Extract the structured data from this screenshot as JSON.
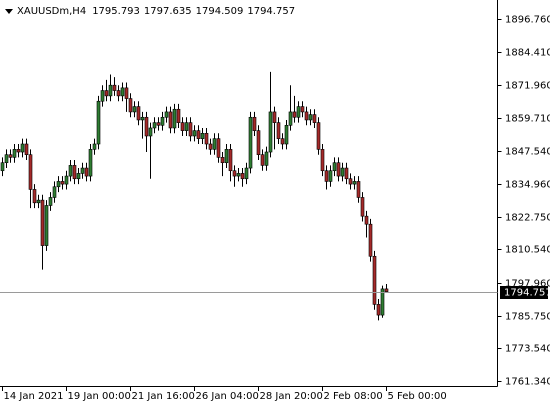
{
  "chart_data": {
    "type": "candlestick",
    "title": "XAUUSDm,H4",
    "categories": [
      "14 Jan 2021",
      null,
      null,
      null,
      null,
      null,
      null,
      null,
      null,
      null,
      null,
      null,
      null,
      null,
      null,
      null,
      "19 Jan 00:00",
      null,
      null,
      null,
      null,
      null,
      null,
      null,
      null,
      null,
      null,
      null,
      null,
      null,
      null,
      null,
      "21 Jan 16:00",
      null,
      null,
      null,
      null,
      null,
      null,
      null,
      null,
      null,
      null,
      null,
      null,
      null,
      null,
      null,
      "26 Jan 04:00",
      null,
      null,
      null,
      null,
      null,
      null,
      null,
      null,
      null,
      null,
      null,
      null,
      null,
      null,
      null,
      "28 Jan 20:00",
      null,
      null,
      null,
      null,
      null,
      null,
      null,
      null,
      null,
      null,
      null,
      null,
      null,
      null,
      null,
      "2 Feb 08:00",
      null,
      null,
      null,
      null,
      null,
      null,
      null,
      null,
      null,
      null,
      null,
      null,
      null,
      null,
      null,
      "5 Feb 00:00"
    ],
    "open": [
      1840,
      1843,
      1846,
      1845,
      1848,
      1847,
      1850,
      1846,
      1833,
      1828,
      1829,
      1812,
      1827,
      1830,
      1834,
      1836,
      1835,
      1838,
      1842,
      1837,
      1839,
      1841,
      1838,
      1848,
      1850,
      1866,
      1870,
      1868,
      1872,
      1870,
      1868,
      1871,
      1867,
      1862,
      1864,
      1859,
      1860,
      1853,
      1856,
      1858,
      1857,
      1860,
      1862,
      1856,
      1863,
      1858,
      1855,
      1858,
      1853,
      1855,
      1852,
      1854,
      1850,
      1848,
      1852,
      1845,
      1843,
      1848,
      1840,
      1838,
      1839,
      1837,
      1841,
      1860,
      1855,
      1846,
      1842,
      1847,
      1862,
      1858,
      1852,
      1850,
      1857,
      1862,
      1860,
      1864,
      1862,
      1859,
      1861,
      1858,
      1848,
      1840,
      1836,
      1840,
      1843,
      1838,
      1841,
      1837,
      1835,
      1836,
      1830,
      1823,
      1820,
      1808,
      1790,
      1786,
      1795.793
    ],
    "high": [
      1845,
      1848,
      1848,
      1850,
      1850,
      1852,
      1852,
      1848,
      1835,
      1831,
      1831,
      1829,
      1832,
      1836,
      1838,
      1838,
      1840,
      1844,
      1844,
      1841,
      1843,
      1843,
      1850,
      1852,
      1868,
      1872,
      1874,
      1876,
      1875,
      1872,
      1873,
      1873,
      1869,
      1866,
      1866,
      1862,
      1862,
      1858,
      1860,
      1860,
      1862,
      1864,
      1864,
      1865,
      1865,
      1860,
      1860,
      1860,
      1857,
      1857,
      1856,
      1856,
      1852,
      1854,
      1854,
      1847,
      1850,
      1850,
      1842,
      1841,
      1841,
      1843,
      1862,
      1862,
      1857,
      1848,
      1849,
      1877,
      1864,
      1860,
      1854,
      1859,
      1872,
      1868,
      1866,
      1866,
      1864,
      1863,
      1863,
      1860,
      1850,
      1842,
      1842,
      1845,
      1845,
      1843,
      1843,
      1839,
      1838,
      1838,
      1832,
      1825,
      1822,
      1810,
      1792,
      1797,
      1797.635
    ],
    "low": [
      1838,
      1841,
      1843,
      1843,
      1845,
      1845,
      1844,
      1826,
      1826,
      1826,
      1803,
      1810,
      1825,
      1828,
      1832,
      1833,
      1833,
      1836,
      1835,
      1835,
      1837,
      1836,
      1836,
      1846,
      1848,
      1864,
      1866,
      1866,
      1868,
      1866,
      1866,
      1862,
      1860,
      1860,
      1857,
      1852,
      1847,
      1837,
      1854,
      1855,
      1855,
      1858,
      1854,
      1854,
      1856,
      1853,
      1853,
      1851,
      1851,
      1850,
      1850,
      1848,
      1846,
      1846,
      1843,
      1838,
      1841,
      1836,
      1834,
      1836,
      1834,
      1835,
      1839,
      1853,
      1844,
      1840,
      1840,
      1845,
      1848,
      1850,
      1848,
      1848,
      1855,
      1858,
      1858,
      1860,
      1857,
      1857,
      1856,
      1846,
      1838,
      1833,
      1834,
      1838,
      1836,
      1836,
      1835,
      1833,
      1833,
      1828,
      1821,
      1815,
      1806,
      1788,
      1784,
      1785,
      1794.509
    ],
    "close": [
      1843,
      1846,
      1845,
      1848,
      1847,
      1850,
      1846,
      1833,
      1828,
      1829,
      1812,
      1827,
      1830,
      1834,
      1836,
      1835,
      1838,
      1842,
      1837,
      1839,
      1841,
      1838,
      1848,
      1850,
      1866,
      1870,
      1868,
      1872,
      1870,
      1868,
      1871,
      1867,
      1862,
      1864,
      1859,
      1860,
      1853,
      1856,
      1858,
      1857,
      1860,
      1862,
      1856,
      1863,
      1858,
      1855,
      1858,
      1853,
      1855,
      1852,
      1854,
      1850,
      1848,
      1852,
      1845,
      1843,
      1848,
      1840,
      1838,
      1839,
      1837,
      1841,
      1860,
      1855,
      1846,
      1842,
      1847,
      1862,
      1858,
      1852,
      1850,
      1857,
      1862,
      1860,
      1864,
      1862,
      1859,
      1861,
      1858,
      1848,
      1840,
      1836,
      1840,
      1843,
      1838,
      1841,
      1837,
      1835,
      1836,
      1830,
      1823,
      1820,
      1808,
      1790,
      1786,
      1795.793,
      1794.757
    ],
    "up_color": "#2f7d32",
    "down_color": "#a52a2a",
    "ylim": [
      1759.47,
      1903.87
    ],
    "yticks": [
      {
        "value": 1896.76,
        "label": "1896.760"
      },
      {
        "value": 1884.41,
        "label": "1884.410"
      },
      {
        "value": 1871.96,
        "label": "1871.960"
      },
      {
        "value": 1859.71,
        "label": "1859.710"
      },
      {
        "value": 1847.54,
        "label": "1847.540"
      },
      {
        "value": 1834.96,
        "label": "1834.960"
      },
      {
        "value": 1822.75,
        "label": "1822.750"
      },
      {
        "value": 1810.54,
        "label": "1810.540"
      },
      {
        "value": 1797.96,
        "label": "1797.960"
      },
      {
        "value": 1785.75,
        "label": "1785.750"
      },
      {
        "value": 1773.54,
        "label": "1773.540"
      },
      {
        "value": 1761.34,
        "label": "1761.340"
      }
    ],
    "grid": false
  }
}
